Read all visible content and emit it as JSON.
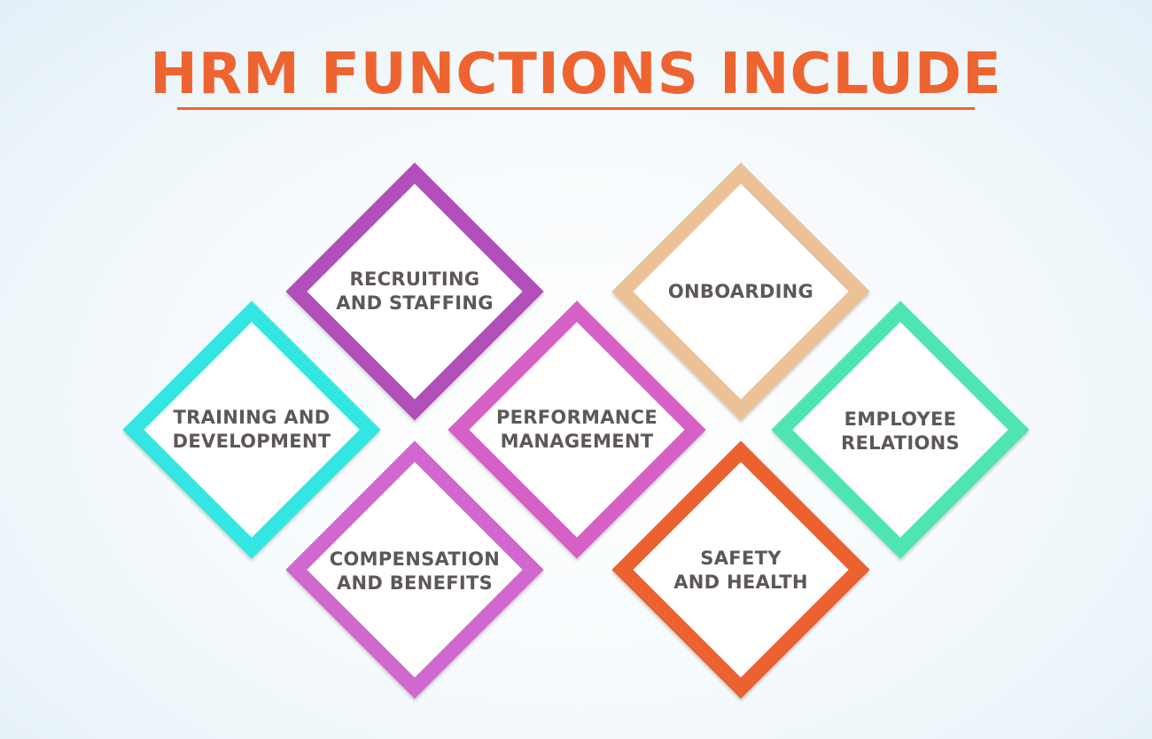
{
  "title": "HRM FUNCTIONS INCLUDE",
  "colors": {
    "title": "#ee6430",
    "underline": "#ee6430",
    "label_text": "#5e5757"
  },
  "functions": [
    {
      "id": "recruiting",
      "lines": [
        "RECRUITING",
        "AND STAFFING"
      ],
      "color": "#b24fbb"
    },
    {
      "id": "onboarding",
      "lines": [
        "ONBOARDING"
      ],
      "color": "#ecc198"
    },
    {
      "id": "training",
      "lines": [
        "TRAINING AND",
        "DEVELOPMENT"
      ],
      "color": "#34e6e2"
    },
    {
      "id": "performance",
      "lines": [
        "PERFORMANCE",
        "MANAGEMENT"
      ],
      "color": "#d760c6"
    },
    {
      "id": "employee-relations",
      "lines": [
        "EMPLOYEE",
        "RELATIONS"
      ],
      "color": "#4ee5b2"
    },
    {
      "id": "compensation",
      "lines": [
        "COMPENSATION",
        "AND BENEFITS"
      ],
      "color": "#d168cf"
    },
    {
      "id": "safety",
      "lines": [
        "SAFETY",
        "AND HEALTH"
      ],
      "color": "#eb6130"
    }
  ]
}
